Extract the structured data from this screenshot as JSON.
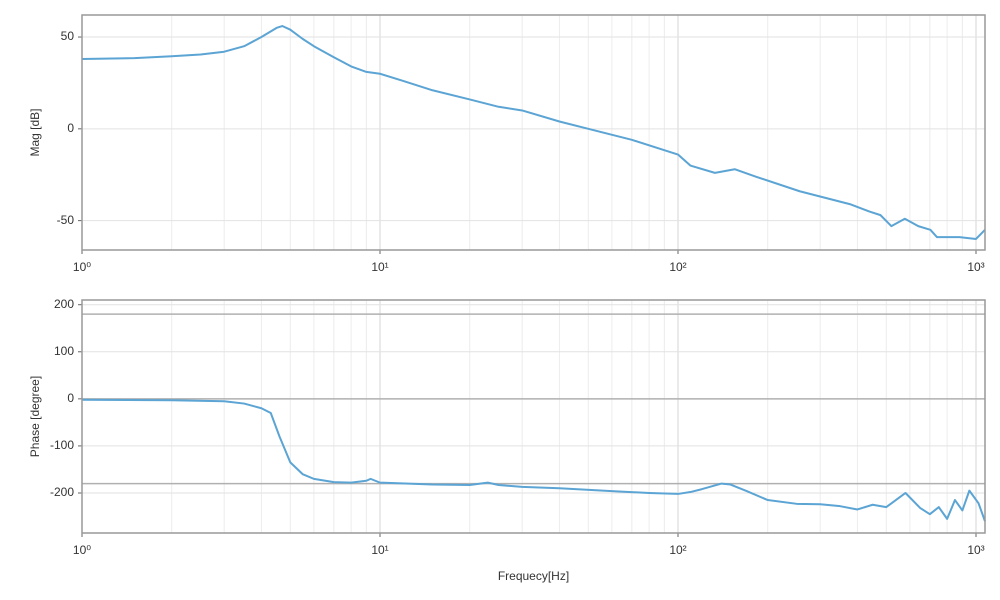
{
  "chart_data": [
    {
      "type": "line",
      "ylabel": "Mag [dB]",
      "log_x": true,
      "grid": true,
      "minor_grid": true,
      "color": "#5ba4d4",
      "xlim": [
        1,
        1072
      ],
      "ylim": [
        -66,
        62
      ],
      "xticks": [
        {
          "value": 1,
          "label": "10⁰"
        },
        {
          "value": 10,
          "label": "10¹"
        },
        {
          "value": 100,
          "label": "10²"
        },
        {
          "value": 1000,
          "label": "10³"
        }
      ],
      "yticks": [
        -50,
        0,
        50
      ],
      "x": [
        1,
        1.5,
        2,
        2.5,
        3,
        3.5,
        4,
        4.5,
        4.7,
        5,
        5.5,
        6,
        7,
        8,
        9,
        10,
        12,
        15,
        20,
        25,
        30,
        40,
        50,
        70,
        100,
        110,
        133,
        155,
        182,
        256,
        377,
        438,
        478,
        520,
        577,
        640,
        703,
        740,
        880,
        1000,
        1072
      ],
      "values": [
        38,
        38.5,
        39.5,
        40.5,
        42,
        45,
        50,
        55,
        56,
        54,
        49,
        45,
        39,
        34,
        31,
        30,
        26,
        21,
        16,
        12,
        10,
        4,
        0,
        -6,
        -14,
        -20,
        -24,
        -22,
        -26,
        -34,
        -41,
        -45,
        -47,
        -53,
        -49,
        -53,
        -55,
        -59,
        -59,
        -60,
        -55
      ]
    },
    {
      "type": "line",
      "ylabel": "Phase [degree]",
      "xlabel": "Frequecy[Hz]",
      "log_x": true,
      "grid": true,
      "minor_grid": true,
      "color": "#5ba4d4",
      "xlim": [
        1,
        1072
      ],
      "ylim": [
        -285,
        210
      ],
      "xticks": [
        {
          "value": 1,
          "label": "10⁰"
        },
        {
          "value": 10,
          "label": "10¹"
        },
        {
          "value": 100,
          "label": "10²"
        },
        {
          "value": 1000,
          "label": "10³"
        }
      ],
      "yticks": [
        -200,
        -100,
        0,
        100,
        200
      ],
      "hlines": [
        180,
        0,
        -180
      ],
      "x": [
        1,
        2,
        3,
        3.5,
        4,
        4.3,
        4.6,
        5,
        5.5,
        6,
        7,
        8,
        9,
        9.3,
        10,
        15,
        20,
        23,
        25,
        30,
        40,
        60,
        80,
        100,
        110,
        120,
        140,
        150,
        170,
        200,
        250,
        300,
        350,
        400,
        450,
        500,
        580,
        650,
        700,
        750,
        800,
        850,
        900,
        950,
        1020,
        1072
      ],
      "values": [
        -2,
        -3,
        -5,
        -10,
        -20,
        -30,
        -80,
        -135,
        -160,
        -170,
        -177,
        -178,
        -174,
        -170,
        -178,
        -182,
        -183,
        -178,
        -183,
        -187,
        -190,
        -196,
        -200,
        -202,
        -198,
        -192,
        -180,
        -182,
        -196,
        -215,
        -223,
        -224,
        -228,
        -235,
        -225,
        -230,
        -200,
        -232,
        -245,
        -230,
        -255,
        -215,
        -237,
        -195,
        -222,
        -260
      ]
    }
  ]
}
